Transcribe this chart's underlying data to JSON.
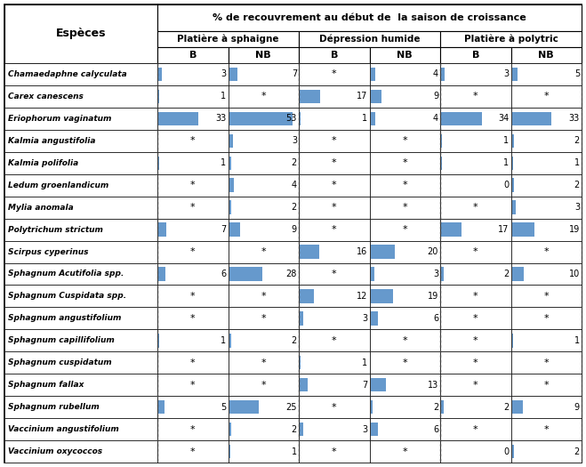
{
  "header_main": "% de recouvrement au début de  la saison de croissance",
  "col_groups": [
    "Platière à sphaigne",
    "Dépression humide",
    "Platière à polytric"
  ],
  "sub_headers": [
    "B",
    "NB",
    "B",
    "NB",
    "B",
    "NB"
  ],
  "species": [
    "Chamaedaphne calyculata",
    "Carex canescens",
    "Eriophorum vaginatum",
    "Kalmia angustifolia",
    "Kalmia polifolia",
    "Ledum groenlandicum",
    "Mylia anomala",
    "Polytrichum strictum",
    "Scirpus cyperinus",
    "Sphagnum Acutifolia spp.",
    "Sphagnum Cuspidata spp.",
    "Sphagnum angustifolium",
    "Sphagnum capillifolium",
    "Sphagnum cuspidatum",
    "Sphagnum fallax",
    "Sphagnum rubellum",
    "Vaccinium angustifolium",
    "Vaccinium oxycoccos"
  ],
  "data": [
    [
      3,
      7,
      "*",
      4,
      3,
      5
    ],
    [
      1,
      "*",
      17,
      9,
      "*",
      "*"
    ],
    [
      33,
      53,
      1,
      4,
      34,
      33
    ],
    [
      "*",
      3,
      "*",
      "*",
      1,
      2
    ],
    [
      1,
      2,
      "*",
      "*",
      1,
      1
    ],
    [
      "*",
      4,
      "*",
      "*",
      0,
      2
    ],
    [
      "*",
      2,
      "*",
      "*",
      "*",
      3
    ],
    [
      7,
      9,
      "*",
      "*",
      17,
      19
    ],
    [
      "*",
      "*",
      16,
      20,
      "*",
      "*"
    ],
    [
      6,
      28,
      "*",
      3,
      2,
      10
    ],
    [
      "*",
      "*",
      12,
      19,
      "*",
      "*"
    ],
    [
      "*",
      "*",
      3,
      6,
      "*",
      "*"
    ],
    [
      1,
      2,
      "*",
      "*",
      "*",
      1
    ],
    [
      "*",
      "*",
      1,
      "*",
      "*",
      "*"
    ],
    [
      "*",
      "*",
      7,
      13,
      "*",
      "*"
    ],
    [
      5,
      25,
      "*",
      2,
      2,
      9
    ],
    [
      "*",
      2,
      3,
      6,
      "*",
      "*"
    ],
    [
      "*",
      1,
      "*",
      "*",
      0,
      2
    ]
  ],
  "bar_color": "#6699CC",
  "bar_max_scale": 53,
  "bg_color": "#FFFFFF"
}
